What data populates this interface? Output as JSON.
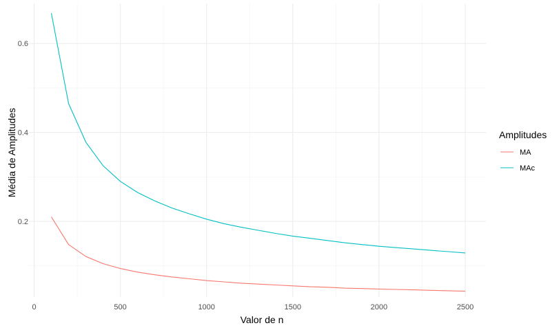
{
  "chart_data": {
    "type": "line",
    "xlabel": "Valor de n",
    "ylabel": "Média de Amplitudes",
    "xlim": [
      -30,
      2620
    ],
    "ylim": [
      0.03,
      0.69
    ],
    "x_ticks": [
      0,
      500,
      1000,
      1500,
      2000,
      2500
    ],
    "x_tick_labels": [
      "0",
      "500",
      "1000",
      "1500",
      "2000",
      "2500"
    ],
    "y_ticks": [
      0.2,
      0.4,
      0.6
    ],
    "y_tick_labels": [
      "0.2",
      "0.4",
      "0.6"
    ],
    "grid": true,
    "legend": {
      "title": "Amplitudes",
      "placement": "right"
    },
    "x": [
      100,
      200,
      300,
      400,
      500,
      600,
      700,
      800,
      900,
      1000,
      1100,
      1200,
      1300,
      1400,
      1500,
      1600,
      1700,
      1800,
      1900,
      2000,
      2100,
      2200,
      2300,
      2400,
      2500
    ],
    "series": [
      {
        "name": "MA",
        "color": "#F8766D",
        "values": [
          0.21,
          0.148,
          0.121,
          0.105,
          0.094,
          0.086,
          0.08,
          0.075,
          0.071,
          0.067,
          0.064,
          0.061,
          0.059,
          0.057,
          0.055,
          0.053,
          0.052,
          0.05,
          0.049,
          0.048,
          0.047,
          0.046,
          0.045,
          0.044,
          0.043
        ]
      },
      {
        "name": "MAc",
        "color": "#00BFC4",
        "values": [
          0.668,
          0.465,
          0.378,
          0.325,
          0.29,
          0.265,
          0.246,
          0.23,
          0.217,
          0.205,
          0.195,
          0.187,
          0.18,
          0.173,
          0.167,
          0.162,
          0.157,
          0.152,
          0.148,
          0.144,
          0.141,
          0.138,
          0.135,
          0.132,
          0.129
        ]
      }
    ]
  }
}
